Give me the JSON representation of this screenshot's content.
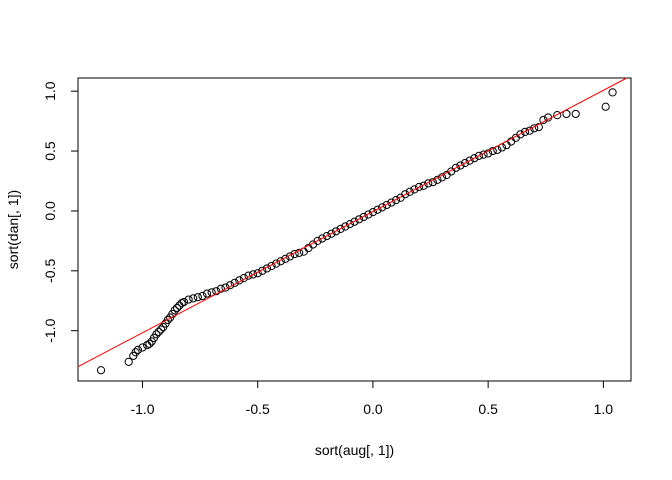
{
  "chart_data": {
    "type": "scatter",
    "title": "",
    "xlabel": "sort(aug[, 1])",
    "ylabel": "sort(dan[, 1])",
    "xlim": [
      -1.28,
      1.12
    ],
    "ylim": [
      -1.42,
      1.11
    ],
    "x_ticks": [
      "-1.0",
      "-0.5",
      "0.0",
      "0.5",
      "1.0"
    ],
    "y_ticks": [
      "-1.0",
      "-0.5",
      "0.0",
      "0.5",
      "1.0"
    ],
    "grid": false,
    "point_color": "#000000",
    "reference_line": {
      "color": "#ff0000",
      "intercept": -0.005,
      "slope": 1.012
    },
    "series": [
      {
        "values": [
          [
            -1.18,
            -1.33
          ],
          [
            -1.06,
            -1.26
          ],
          [
            -1.04,
            -1.21
          ],
          [
            -1.03,
            -1.18
          ],
          [
            -1.02,
            -1.16
          ],
          [
            -1.0,
            -1.14
          ],
          [
            -0.98,
            -1.12
          ],
          [
            -0.97,
            -1.11
          ],
          [
            -0.96,
            -1.09
          ],
          [
            -0.95,
            -1.06
          ],
          [
            -0.94,
            -1.03
          ],
          [
            -0.93,
            -1.01
          ],
          [
            -0.92,
            -0.99
          ],
          [
            -0.91,
            -0.97
          ],
          [
            -0.9,
            -0.94
          ],
          [
            -0.89,
            -0.91
          ],
          [
            -0.88,
            -0.89
          ],
          [
            -0.87,
            -0.86
          ],
          [
            -0.86,
            -0.83
          ],
          [
            -0.85,
            -0.81
          ],
          [
            -0.84,
            -0.79
          ],
          [
            -0.83,
            -0.77
          ],
          [
            -0.82,
            -0.76
          ],
          [
            -0.8,
            -0.74
          ],
          [
            -0.78,
            -0.73
          ],
          [
            -0.76,
            -0.72
          ],
          [
            -0.74,
            -0.71
          ],
          [
            -0.72,
            -0.69
          ],
          [
            -0.7,
            -0.68
          ],
          [
            -0.68,
            -0.67
          ],
          [
            -0.66,
            -0.65
          ],
          [
            -0.64,
            -0.64
          ],
          [
            -0.62,
            -0.62
          ],
          [
            -0.6,
            -0.6
          ],
          [
            -0.58,
            -0.58
          ],
          [
            -0.56,
            -0.56
          ],
          [
            -0.54,
            -0.54
          ],
          [
            -0.52,
            -0.53
          ],
          [
            -0.5,
            -0.52
          ],
          [
            -0.48,
            -0.5
          ],
          [
            -0.46,
            -0.48
          ],
          [
            -0.44,
            -0.46
          ],
          [
            -0.42,
            -0.44
          ],
          [
            -0.4,
            -0.42
          ],
          [
            -0.38,
            -0.4
          ],
          [
            -0.36,
            -0.38
          ],
          [
            -0.34,
            -0.36
          ],
          [
            -0.32,
            -0.35
          ],
          [
            -0.3,
            -0.34
          ],
          [
            -0.28,
            -0.31
          ],
          [
            -0.26,
            -0.28
          ],
          [
            -0.24,
            -0.25
          ],
          [
            -0.22,
            -0.23
          ],
          [
            -0.2,
            -0.21
          ],
          [
            -0.18,
            -0.19
          ],
          [
            -0.16,
            -0.17
          ],
          [
            -0.14,
            -0.15
          ],
          [
            -0.12,
            -0.13
          ],
          [
            -0.1,
            -0.11
          ],
          [
            -0.08,
            -0.09
          ],
          [
            -0.06,
            -0.07
          ],
          [
            -0.04,
            -0.05
          ],
          [
            -0.02,
            -0.03
          ],
          [
            0.0,
            -0.01
          ],
          [
            0.02,
            0.01
          ],
          [
            0.04,
            0.03
          ],
          [
            0.06,
            0.05
          ],
          [
            0.08,
            0.07
          ],
          [
            0.1,
            0.09
          ],
          [
            0.12,
            0.11
          ],
          [
            0.14,
            0.14
          ],
          [
            0.16,
            0.16
          ],
          [
            0.18,
            0.18
          ],
          [
            0.2,
            0.2
          ],
          [
            0.22,
            0.21
          ],
          [
            0.24,
            0.23
          ],
          [
            0.26,
            0.24
          ],
          [
            0.28,
            0.26
          ],
          [
            0.3,
            0.28
          ],
          [
            0.32,
            0.3
          ],
          [
            0.34,
            0.33
          ],
          [
            0.36,
            0.36
          ],
          [
            0.38,
            0.38
          ],
          [
            0.4,
            0.4
          ],
          [
            0.42,
            0.42
          ],
          [
            0.44,
            0.44
          ],
          [
            0.46,
            0.46
          ],
          [
            0.48,
            0.47
          ],
          [
            0.5,
            0.48
          ],
          [
            0.52,
            0.5
          ],
          [
            0.54,
            0.51
          ],
          [
            0.56,
            0.53
          ],
          [
            0.58,
            0.55
          ],
          [
            0.6,
            0.58
          ],
          [
            0.62,
            0.61
          ],
          [
            0.64,
            0.64
          ],
          [
            0.66,
            0.66
          ],
          [
            0.68,
            0.67
          ],
          [
            0.7,
            0.69
          ],
          [
            0.72,
            0.7
          ],
          [
            0.74,
            0.76
          ],
          [
            0.76,
            0.78
          ],
          [
            0.8,
            0.8
          ],
          [
            0.84,
            0.81
          ],
          [
            0.88,
            0.81
          ],
          [
            1.01,
            0.87
          ],
          [
            1.04,
            0.99
          ]
        ]
      }
    ]
  }
}
